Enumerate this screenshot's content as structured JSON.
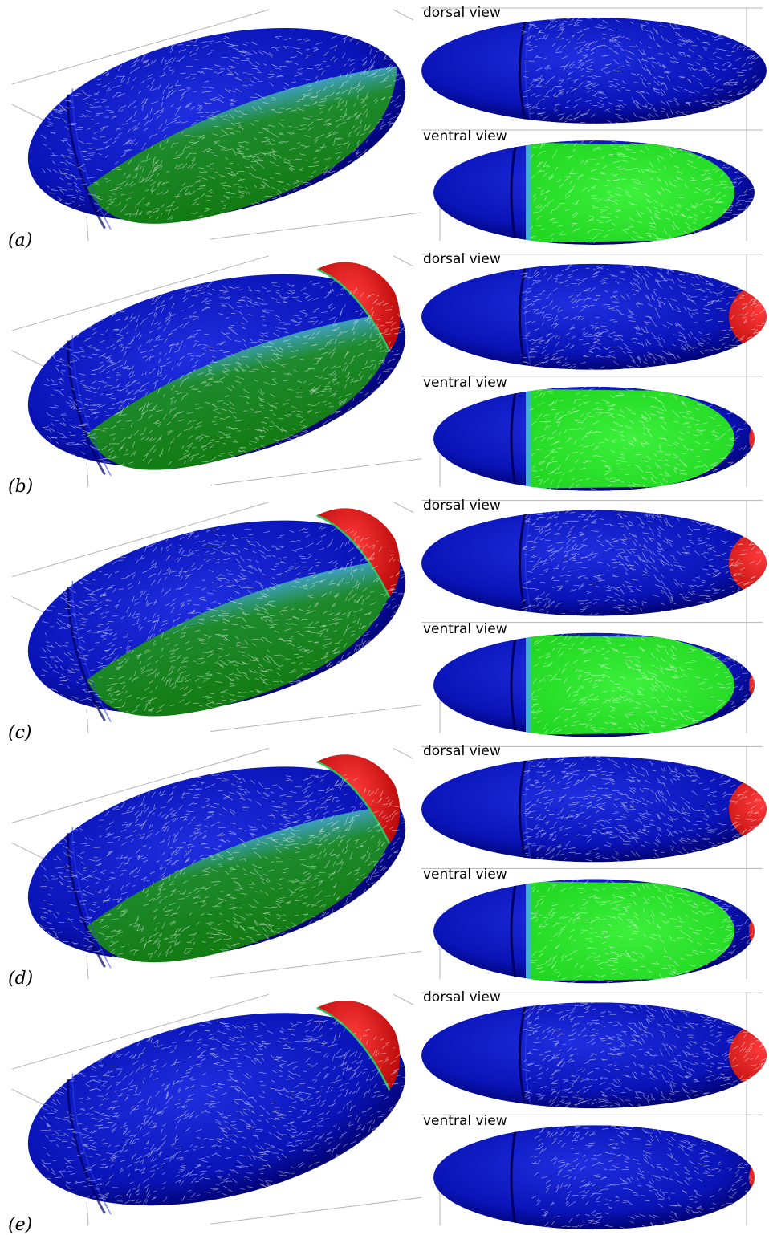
{
  "panels": [
    {
      "label": "(a)",
      "dorsal_label": "dorsal view",
      "ventral_label": "ventral view",
      "posterior_patch": false,
      "ventral_domain": true
    },
    {
      "label": "(b)",
      "dorsal_label": "dorsal view",
      "ventral_label": "ventral view",
      "posterior_patch": true,
      "ventral_domain": true
    },
    {
      "label": "(c)",
      "dorsal_label": "dorsal view",
      "ventral_label": "ventral view",
      "posterior_patch": true,
      "ventral_domain": true
    },
    {
      "label": "(d)",
      "dorsal_label": "dorsal view",
      "ventral_label": "ventral view",
      "posterior_patch": true,
      "ventral_domain": true
    },
    {
      "label": "(e)",
      "dorsal_label": "dorsal view",
      "ventral_label": "ventral view",
      "posterior_patch": true,
      "ventral_domain": false
    }
  ],
  "colors": {
    "body": "#0a14b8",
    "body_dark": "#00006a",
    "ventral_oblique": "#127a12",
    "ventral_flat": "#22d822",
    "posterior": "#e01010",
    "flow": "#ffffff",
    "frame": "#b4b4b4"
  }
}
